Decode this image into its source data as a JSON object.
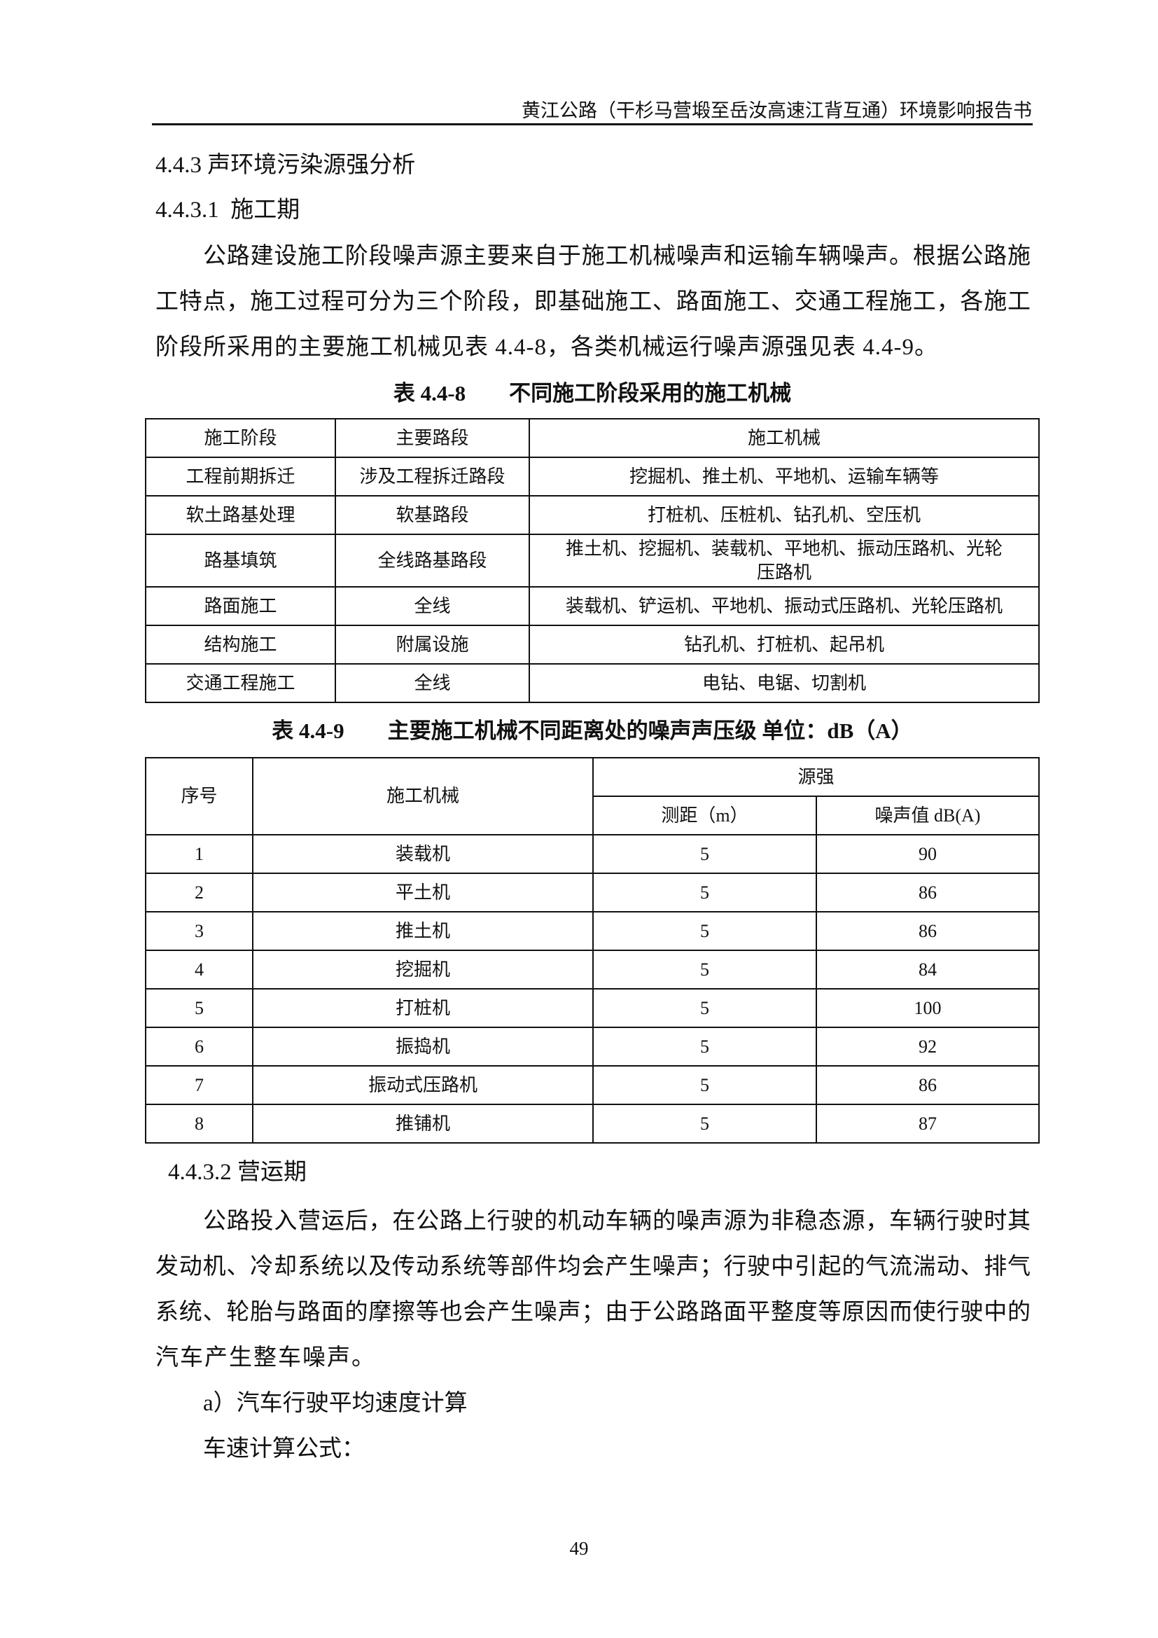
{
  "header": {
    "title": "黄江公路（干杉马营塅至岳汝高速江背互通）环境影响报告书"
  },
  "section": {
    "heading": "4.4.3 声环境污染源强分析"
  },
  "construction": {
    "heading": "4.4.3.1  施工期",
    "paragraph_lines": [
      "公路建设施工阶段噪声源主要来自于施工机械噪声和运输车辆噪声。根据公路施",
      "工特点，施工过程可分为三个阶段，即基础施工、路面施工、交通工程施工，各施工",
      "阶段所采用的主要施工机械见表 4.4-8，各类机械运行噪声源强见表 4.4-9。"
    ]
  },
  "table1": {
    "caption": "表 4.4-8        不同施工阶段采用的施工机械",
    "headers": [
      "施工阶段",
      "主要路段",
      "施工机械"
    ],
    "rows": [
      [
        "工程前期拆迁",
        "涉及工程拆迁路段",
        "挖掘机、推土机、平地机、运输车辆等"
      ],
      [
        "软土路基处理",
        "软基路段",
        "打桩机、压桩机、钻孔机、空压机"
      ],
      [
        "路基填筑",
        "全线路基路段",
        "推土机、挖掘机、装载机、平地机、振动压路机、光轮压路机"
      ],
      [
        "路面施工",
        "全线",
        "装载机、铲运机、平地机、振动式压路机、光轮压路机"
      ],
      [
        "结构施工",
        "附属设施",
        "钻孔机、打桩机、起吊机"
      ],
      [
        "交通工程施工",
        "全线",
        "电钻、电锯、切割机"
      ]
    ]
  },
  "table2": {
    "caption": "表 4.4-9        主要施工机械不同距离处的噪声声压级 单位：dB（A）",
    "headers": {
      "no": "序号",
      "machine": "施工机械",
      "source": "源强",
      "distance": "测距（m）",
      "noise": "噪声值 dB(A)"
    },
    "rows": [
      [
        "1",
        "装载机",
        "5",
        "90"
      ],
      [
        "2",
        "平土机",
        "5",
        "86"
      ],
      [
        "3",
        "推土机",
        "5",
        "86"
      ],
      [
        "4",
        "挖掘机",
        "5",
        "84"
      ],
      [
        "5",
        "打桩机",
        "5",
        "100"
      ],
      [
        "6",
        "振捣机",
        "5",
        "92"
      ],
      [
        "7",
        "振动式压路机",
        "5",
        "86"
      ],
      [
        "8",
        "推铺机",
        "5",
        "87"
      ]
    ]
  },
  "operation": {
    "heading": "4.4.3.2 营运期",
    "paragraph_lines": [
      "公路投入营运后，在公路上行驶的机动车辆的噪声源为非稳态源，车辆行驶时其",
      "发动机、冷却系统以及传动系统等部件均会产生噪声；行驶中引起的气流湍动、排气",
      "系统、轮胎与路面的摩擦等也会产生噪声；由于公路路面平整度等原因而使行驶中的",
      "汽车产生整车噪声。"
    ],
    "item_a": "a）汽车行驶平均速度计算",
    "formula_label": "车速计算公式："
  },
  "page_number": "49"
}
